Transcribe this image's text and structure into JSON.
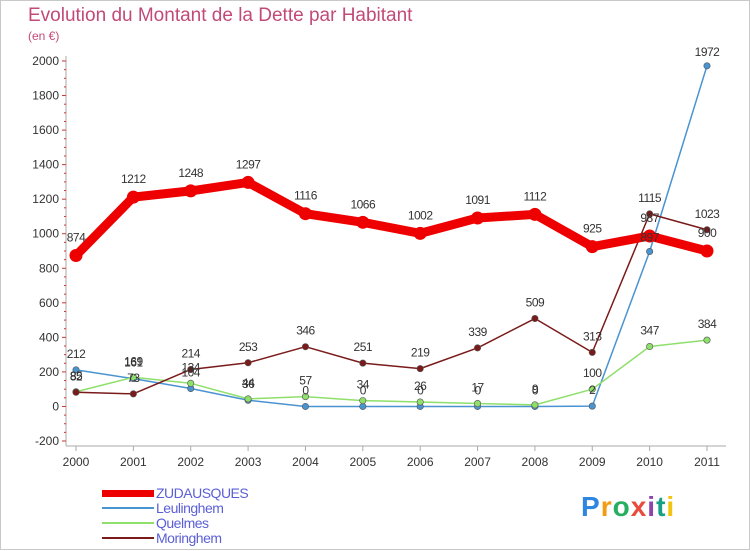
{
  "title": "Evolution du Montant de la Dette par Habitant",
  "subtitle": "(en €)",
  "brand": "Proxiti",
  "brand_colors": [
    "#2e86de",
    "#f39c12",
    "#27ae60",
    "#e74c3c",
    "#8e44ad",
    "#16a085",
    "#f1c40f"
  ],
  "chart_data": {
    "type": "line",
    "x": [
      "2000",
      "2001",
      "2002",
      "2003",
      "2004",
      "2005",
      "2006",
      "2007",
      "2008",
      "2009",
      "2010",
      "2011"
    ],
    "ylim": [
      -200,
      2000
    ],
    "yticks": [
      -200,
      0,
      200,
      400,
      600,
      800,
      1000,
      1200,
      1400,
      1600,
      1800,
      2000
    ],
    "ytick_labels": [
      "-200",
      "0",
      "200",
      "400",
      "600",
      "800",
      "1000",
      "1200",
      "1400",
      "1600",
      "1800",
      "2000"
    ],
    "grid": false,
    "legend_position": "bottom-left",
    "series": [
      {
        "name": "ZUDAUSQUES",
        "color": "#ee0000",
        "values": [
          874,
          1212,
          1248,
          1297,
          1116,
          1066,
          1002,
          1091,
          1112,
          925,
          987,
          900
        ],
        "labels": [
          "874",
          "1212",
          "1248",
          "1297",
          "1116",
          "1066",
          "1002",
          "1091",
          "1112",
          "925",
          "987",
          "900"
        ]
      },
      {
        "name": "Leulinghem",
        "color": "#4a93d1",
        "values": [
          212,
          161,
          104,
          36,
          0,
          0,
          0,
          0,
          0,
          2,
          897,
          1972
        ],
        "labels": [
          "212",
          "161",
          "104",
          "36",
          "0",
          "0",
          "0",
          "0",
          "0",
          "2",
          "897",
          "1972"
        ]
      },
      {
        "name": "Quelmes",
        "color": "#8ee06a",
        "values": [
          85,
          169,
          134,
          44,
          57,
          34,
          26,
          17,
          9,
          100,
          347,
          384
        ],
        "labels": [
          "85",
          "169",
          "134",
          "44",
          "57",
          "34",
          "26",
          "17",
          "9",
          "100",
          "347",
          "384"
        ]
      },
      {
        "name": "Moringhem",
        "color": "#7a1a1a",
        "values": [
          82,
          73,
          214,
          253,
          346,
          251,
          219,
          339,
          509,
          313,
          1115,
          1023
        ],
        "labels": [
          "82",
          "73",
          "214",
          "253",
          "346",
          "251",
          "219",
          "339",
          "509",
          "313",
          "1115",
          "1023"
        ]
      }
    ]
  }
}
